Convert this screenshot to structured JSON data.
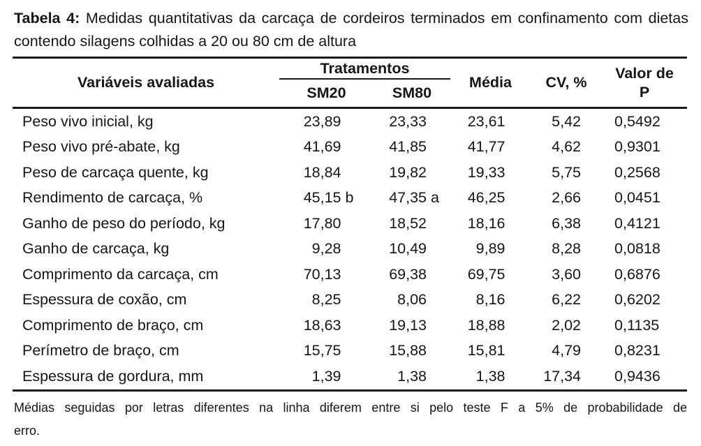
{
  "title": {
    "label": "Tabela 4:",
    "text": "Medidas quantitativas da carcaça de cordeiros terminados em confinamento com dietas contendo silagens colhidas a 20 ou 80 cm de altura"
  },
  "table": {
    "headers": {
      "variables": "Variáveis avaliadas",
      "treatments_group": "Tratamentos",
      "treatment_cols": [
        "SM20",
        "SM80"
      ],
      "mean": "Média",
      "cv": "CV, %",
      "p_value": "Valor de\nP"
    },
    "rows": [
      {
        "variable": "Peso vivo inicial, kg",
        "sm20": "23,89",
        "sm80": "23,33",
        "media": "23,61",
        "cv": "5,42",
        "p": "0,5492"
      },
      {
        "variable": "Peso vivo pré-abate, kg",
        "sm20": "41,69",
        "sm80": "41,85",
        "media": "41,77",
        "cv": "4,62",
        "p": "0,9301"
      },
      {
        "variable": "Peso de carcaça quente, kg",
        "sm20": "18,84",
        "sm80": "19,82",
        "media": "19,33",
        "cv": "5,75",
        "p": "0,2568"
      },
      {
        "variable": "Rendimento de carcaça, %",
        "sm20": "45,15 b",
        "sm80": "47,35 a",
        "media": "46,25",
        "cv": "2,66",
        "p": "0,0451"
      },
      {
        "variable": "Ganho de peso do período, kg",
        "sm20": "17,80",
        "sm80": "18,52",
        "media": "18,16",
        "cv": "6,38",
        "p": "0,4121"
      },
      {
        "variable": "Ganho de carcaça, kg",
        "sm20": "9,28",
        "sm80": "10,49",
        "media": "9,89",
        "cv": "8,28",
        "p": "0,0818"
      },
      {
        "variable": "Comprimento da carcaça, cm",
        "sm20": "70,13",
        "sm80": "69,38",
        "media": "69,75",
        "cv": "3,60",
        "p": "0,6876"
      },
      {
        "variable": "Espessura de coxão, cm",
        "sm20": "8,25",
        "sm80": "8,06",
        "media": "8,16",
        "cv": "6,22",
        "p": "0,6202"
      },
      {
        "variable": "Comprimento de braço, cm",
        "sm20": "18,63",
        "sm80": "19,13",
        "media": "18,88",
        "cv": "2,02",
        "p": "0,1135"
      },
      {
        "variable": "Perímetro de braço, cm",
        "sm20": "15,75",
        "sm80": "15,88",
        "media": "15,81",
        "cv": "4,79",
        "p": "0,8231"
      },
      {
        "variable": "Espessura de gordura, mm",
        "sm20": "1,39",
        "sm80": "1,38",
        "media": "1,38",
        "cv": "17,34",
        "p": "0,9436"
      }
    ]
  },
  "footnote_lines": [
    "Médias seguidas por letras diferentes na linha diferem entre si pelo teste F a 5% de probabilidade de",
    "erro."
  ]
}
